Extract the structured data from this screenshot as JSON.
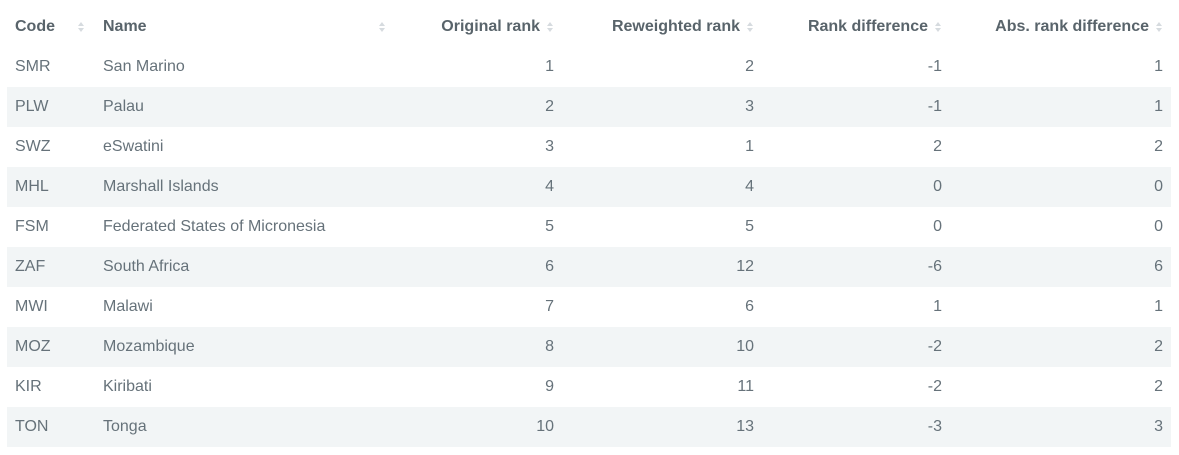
{
  "table": {
    "headers": {
      "code": "Code",
      "name": "Name",
      "original_rank": "Original rank",
      "reweighted_rank": "Reweighted rank",
      "rank_difference": "Rank difference",
      "abs_rank_difference": "Abs. rank difference"
    },
    "rows": [
      {
        "code": "SMR",
        "name": "San Marino",
        "original_rank": "1",
        "reweighted_rank": "2",
        "rank_difference": "-1",
        "abs_rank_difference": "1"
      },
      {
        "code": "PLW",
        "name": "Palau",
        "original_rank": "2",
        "reweighted_rank": "3",
        "rank_difference": "-1",
        "abs_rank_difference": "1"
      },
      {
        "code": "SWZ",
        "name": "eSwatini",
        "original_rank": "3",
        "reweighted_rank": "1",
        "rank_difference": "2",
        "abs_rank_difference": "2"
      },
      {
        "code": "MHL",
        "name": "Marshall Islands",
        "original_rank": "4",
        "reweighted_rank": "4",
        "rank_difference": "0",
        "abs_rank_difference": "0"
      },
      {
        "code": "FSM",
        "name": "Federated States of Micronesia",
        "original_rank": "5",
        "reweighted_rank": "5",
        "rank_difference": "0",
        "abs_rank_difference": "0"
      },
      {
        "code": "ZAF",
        "name": "South Africa",
        "original_rank": "6",
        "reweighted_rank": "12",
        "rank_difference": "-6",
        "abs_rank_difference": "6"
      },
      {
        "code": "MWI",
        "name": "Malawi",
        "original_rank": "7",
        "reweighted_rank": "6",
        "rank_difference": "1",
        "abs_rank_difference": "1"
      },
      {
        "code": "MOZ",
        "name": "Mozambique",
        "original_rank": "8",
        "reweighted_rank": "10",
        "rank_difference": "-2",
        "abs_rank_difference": "2"
      },
      {
        "code": "KIR",
        "name": "Kiribati",
        "original_rank": "9",
        "reweighted_rank": "11",
        "rank_difference": "-2",
        "abs_rank_difference": "2"
      },
      {
        "code": "TON",
        "name": "Tonga",
        "original_rank": "10",
        "reweighted_rank": "13",
        "rank_difference": "-3",
        "abs_rank_difference": "3"
      }
    ]
  },
  "icons": {
    "sort": "sort-icon"
  },
  "colors": {
    "text": "#66727a",
    "header_text": "#59646b",
    "stripe": "#f2f5f6",
    "sort_icon": "#d6dbdf"
  }
}
